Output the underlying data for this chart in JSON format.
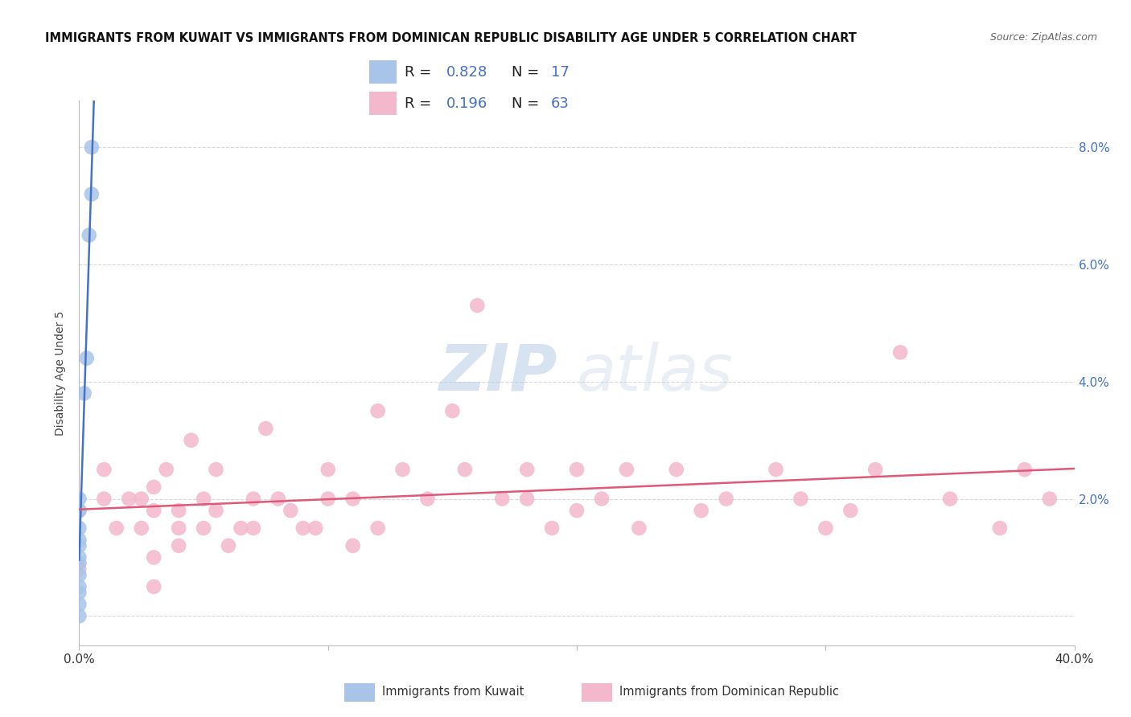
{
  "title": "IMMIGRANTS FROM KUWAIT VS IMMIGRANTS FROM DOMINICAN REPUBLIC DISABILITY AGE UNDER 5 CORRELATION CHART",
  "source": "Source: ZipAtlas.com",
  "ylabel": "Disability Age Under 5",
  "xlim": [
    0.0,
    0.4
  ],
  "ylim": [
    -0.005,
    0.088
  ],
  "kuwait_R": 0.828,
  "kuwait_N": 17,
  "dominican_R": 0.196,
  "dominican_N": 63,
  "kuwait_color": "#a8c4e8",
  "dominican_color": "#f4b8cc",
  "kuwait_line_color": "#4472c4",
  "dominican_line_color": "#e05878",
  "legend_number_color": "#4472c4",
  "kuwait_scatter_x": [
    0.0,
    0.0,
    0.0,
    0.0,
    0.0,
    0.0,
    0.0,
    0.0,
    0.0,
    0.0,
    0.0,
    0.0,
    0.002,
    0.003,
    0.004,
    0.005,
    0.005
  ],
  "kuwait_scatter_y": [
    0.0,
    0.002,
    0.004,
    0.005,
    0.007,
    0.009,
    0.01,
    0.012,
    0.013,
    0.015,
    0.018,
    0.02,
    0.038,
    0.044,
    0.065,
    0.072,
    0.08
  ],
  "dominican_scatter_x": [
    0.0,
    0.0,
    0.01,
    0.01,
    0.015,
    0.02,
    0.025,
    0.025,
    0.03,
    0.03,
    0.03,
    0.03,
    0.035,
    0.04,
    0.04,
    0.04,
    0.045,
    0.05,
    0.05,
    0.055,
    0.055,
    0.06,
    0.065,
    0.07,
    0.07,
    0.075,
    0.08,
    0.085,
    0.09,
    0.095,
    0.1,
    0.1,
    0.11,
    0.11,
    0.12,
    0.12,
    0.13,
    0.14,
    0.15,
    0.155,
    0.16,
    0.17,
    0.18,
    0.18,
    0.19,
    0.2,
    0.2,
    0.21,
    0.22,
    0.225,
    0.24,
    0.25,
    0.26,
    0.28,
    0.29,
    0.3,
    0.31,
    0.32,
    0.33,
    0.35,
    0.37,
    0.38,
    0.39
  ],
  "dominican_scatter_y": [
    0.018,
    0.008,
    0.02,
    0.025,
    0.015,
    0.02,
    0.015,
    0.02,
    0.018,
    0.022,
    0.01,
    0.005,
    0.025,
    0.015,
    0.012,
    0.018,
    0.03,
    0.015,
    0.02,
    0.018,
    0.025,
    0.012,
    0.015,
    0.015,
    0.02,
    0.032,
    0.02,
    0.018,
    0.015,
    0.015,
    0.02,
    0.025,
    0.02,
    0.012,
    0.035,
    0.015,
    0.025,
    0.02,
    0.035,
    0.025,
    0.053,
    0.02,
    0.025,
    0.02,
    0.015,
    0.025,
    0.018,
    0.02,
    0.025,
    0.015,
    0.025,
    0.018,
    0.02,
    0.025,
    0.02,
    0.015,
    0.018,
    0.025,
    0.045,
    0.02,
    0.015,
    0.025,
    0.02
  ],
  "watermark_zip": "ZIP",
  "watermark_atlas": "atlas",
  "background_color": "#ffffff",
  "grid_color": "#d8d8d8",
  "title_fontsize": 10.5,
  "axis_label_fontsize": 10,
  "legend_fontsize": 13,
  "right_tick_color": "#4472c4"
}
